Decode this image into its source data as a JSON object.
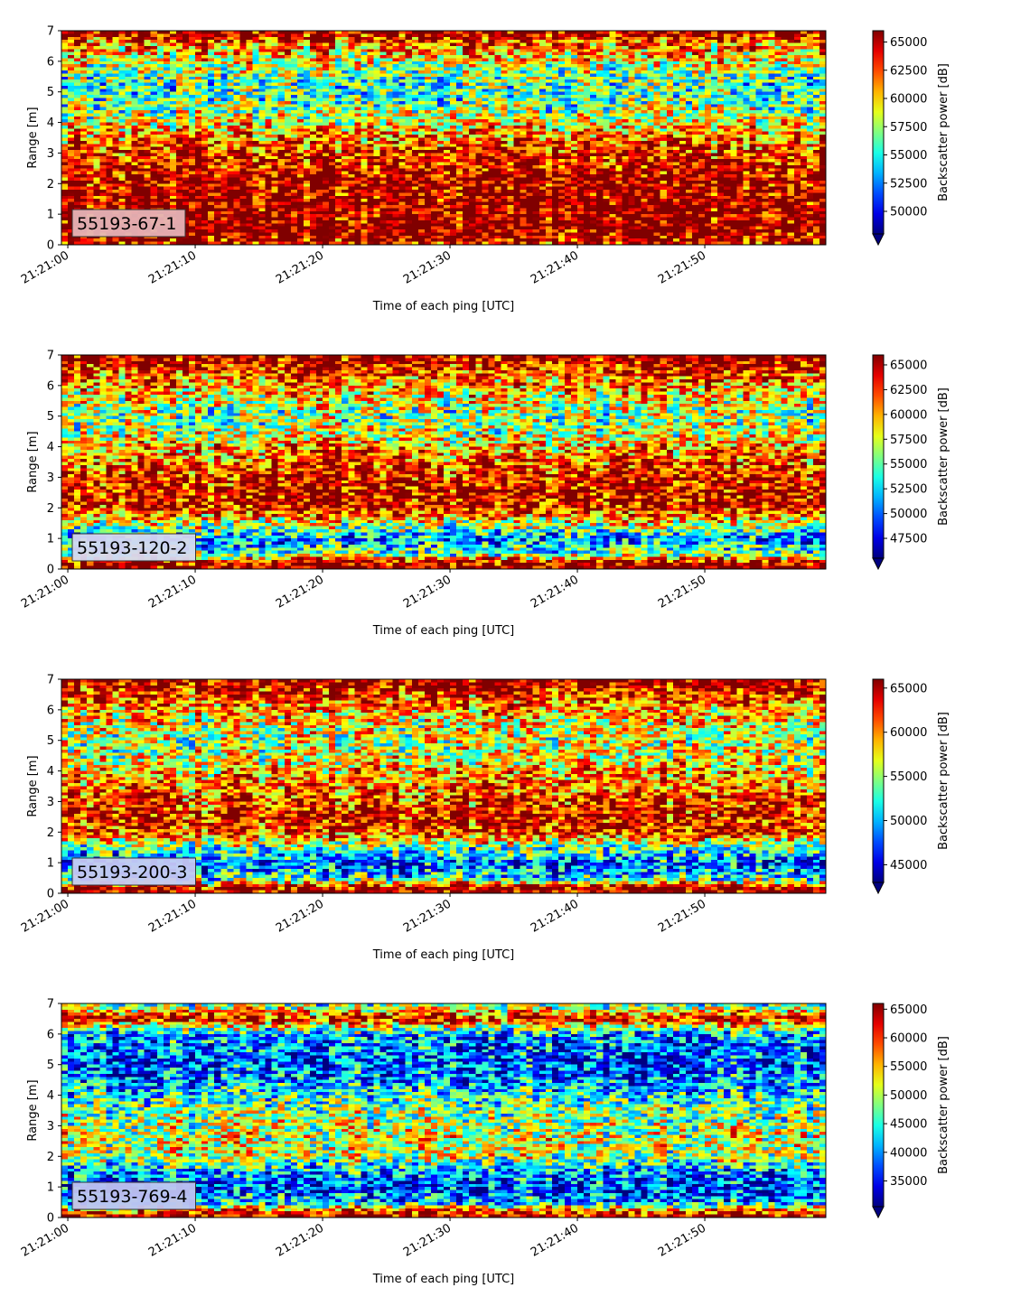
{
  "chart_data": [
    {
      "type": "heatmap",
      "label": "55193-67-1",
      "xlabel": "Time of each ping [UTC]",
      "ylabel": "Range [m]",
      "xticks": [
        "21:21:00",
        "21:21:10",
        "21:21:20",
        "21:21:30",
        "21:21:40",
        "21:21:50"
      ],
      "xlim_seconds": [
        -0.5,
        59.5
      ],
      "ylim": [
        0,
        7
      ],
      "yticks": [
        "0",
        "1",
        "2",
        "3",
        "4",
        "5",
        "6",
        "7"
      ],
      "colorbar": {
        "label": "Backscatter power [dB]",
        "vmin": 48000,
        "vmax": 66000,
        "ticks": [
          50000,
          52500,
          55000,
          57500,
          60000,
          62500,
          65000
        ],
        "extend": "min",
        "colormap": "jet"
      },
      "profile": {
        "range_m": [
          0.0,
          0.2,
          0.5,
          1.0,
          1.5,
          2.0,
          2.5,
          3.0,
          3.5,
          4.0,
          4.5,
          5.0,
          5.5,
          6.0,
          6.5,
          7.0
        ],
        "level": [
          0.9,
          0.95,
          1.0,
          1.0,
          0.98,
          0.95,
          0.9,
          0.85,
          0.75,
          0.62,
          0.5,
          0.42,
          0.45,
          0.6,
          0.75,
          1.0
        ]
      }
    },
    {
      "type": "heatmap",
      "label": "55193-120-2",
      "xlabel": "Time of each ping [UTC]",
      "ylabel": "Range [m]",
      "xticks": [
        "21:21:00",
        "21:21:10",
        "21:21:20",
        "21:21:30",
        "21:21:40",
        "21:21:50"
      ],
      "xlim_seconds": [
        -0.5,
        59.5
      ],
      "ylim": [
        0,
        7
      ],
      "yticks": [
        "0",
        "1",
        "2",
        "3",
        "4",
        "5",
        "6",
        "7"
      ],
      "colorbar": {
        "label": "Backscatter power [dB]",
        "vmin": 45500,
        "vmax": 66000,
        "ticks": [
          47500,
          50000,
          52500,
          55000,
          57500,
          60000,
          62500,
          65000
        ],
        "extend": "min",
        "colormap": "jet"
      },
      "profile": {
        "range_m": [
          0.0,
          0.2,
          0.5,
          1.0,
          1.5,
          2.0,
          2.5,
          3.0,
          3.5,
          4.0,
          4.5,
          5.0,
          5.5,
          6.0,
          6.5,
          7.0
        ],
        "level": [
          1.0,
          0.95,
          0.45,
          0.25,
          0.6,
          0.9,
          0.92,
          0.88,
          0.8,
          0.7,
          0.55,
          0.5,
          0.6,
          0.72,
          0.85,
          1.0
        ]
      }
    },
    {
      "type": "heatmap",
      "label": "55193-200-3",
      "xlabel": "Time of each ping [UTC]",
      "ylabel": "Range [m]",
      "xticks": [
        "21:21:00",
        "21:21:10",
        "21:21:20",
        "21:21:30",
        "21:21:40",
        "21:21:50"
      ],
      "xlim_seconds": [
        -0.5,
        59.5
      ],
      "ylim": [
        0,
        7
      ],
      "yticks": [
        "0",
        "1",
        "2",
        "3",
        "4",
        "5",
        "6",
        "7"
      ],
      "colorbar": {
        "label": "Backscatter power [dB]",
        "vmin": 43000,
        "vmax": 66000,
        "ticks": [
          45000,
          50000,
          55000,
          60000,
          65000
        ],
        "extend": "min",
        "colormap": "jet"
      },
      "profile": {
        "range_m": [
          0.0,
          0.2,
          0.5,
          1.0,
          1.5,
          2.0,
          2.5,
          3.0,
          3.5,
          4.0,
          4.5,
          5.0,
          5.5,
          6.0,
          6.5,
          7.0
        ],
        "level": [
          1.0,
          0.95,
          0.35,
          0.2,
          0.45,
          0.85,
          0.88,
          0.82,
          0.75,
          0.68,
          0.58,
          0.55,
          0.6,
          0.7,
          0.85,
          1.0
        ]
      }
    },
    {
      "type": "heatmap",
      "label": "55193-769-4",
      "xlabel": "Time of each ping [UTC]",
      "ylabel": "Range [m]",
      "xticks": [
        "21:21:00",
        "21:21:10",
        "21:21:20",
        "21:21:30",
        "21:21:40",
        "21:21:50"
      ],
      "xlim_seconds": [
        -0.5,
        59.5
      ],
      "ylim": [
        0,
        7
      ],
      "yticks": [
        "0",
        "1",
        "2",
        "3",
        "4",
        "5",
        "6",
        "7"
      ],
      "colorbar": {
        "label": "Backscatter power [dB]",
        "vmin": 30500,
        "vmax": 66000,
        "ticks": [
          35000,
          40000,
          45000,
          50000,
          55000,
          60000,
          65000
        ],
        "extend": "min",
        "colormap": "jet"
      },
      "profile": {
        "range_m": [
          0.0,
          0.2,
          0.5,
          1.0,
          1.5,
          2.0,
          2.5,
          3.0,
          3.5,
          4.0,
          4.5,
          5.0,
          5.5,
          6.0,
          6.5,
          7.0
        ],
        "level": [
          0.95,
          0.85,
          0.3,
          0.15,
          0.3,
          0.55,
          0.6,
          0.55,
          0.5,
          0.4,
          0.25,
          0.2,
          0.22,
          0.3,
          0.9,
          0.45
        ]
      }
    }
  ]
}
